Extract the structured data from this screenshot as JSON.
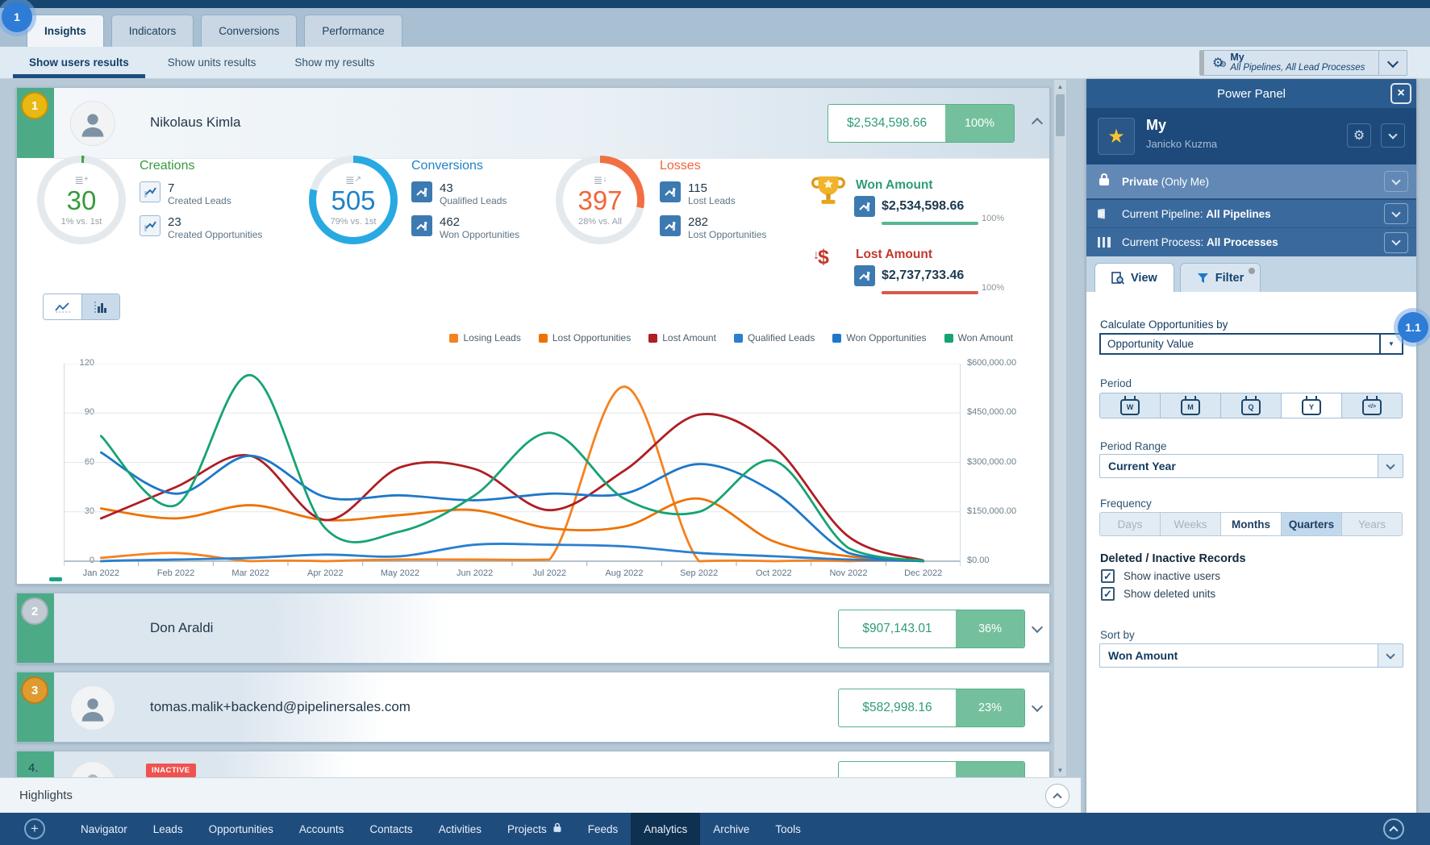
{
  "annotations": {
    "step_badge": "1",
    "sub_step_badge": "1.1"
  },
  "header": {
    "tabs": [
      {
        "label": "Insights",
        "active": true
      },
      {
        "label": "Indicators",
        "active": false
      },
      {
        "label": "Conversions",
        "active": false
      },
      {
        "label": "Performance",
        "active": false
      }
    ],
    "subtabs": [
      {
        "label": "Show users results",
        "active": true
      },
      {
        "label": "Show units results",
        "active": false
      },
      {
        "label": "Show my results",
        "active": false
      }
    ],
    "scope_selector": {
      "title": "My",
      "subtitle": "All Pipelines, All Lead Processes"
    }
  },
  "leaderboard": {
    "rows": [
      {
        "rank": "1",
        "name": "Nikolaus Kimla",
        "amount": "$2,534,598.66",
        "percent": "100%"
      },
      {
        "rank": "2",
        "name": "Don Araldi",
        "amount": "$907,143.01",
        "percent": "36%"
      },
      {
        "rank": "3",
        "name": "tomas.malik+backend@pipelinersales.com",
        "amount": "$582,998.16",
        "percent": "23%"
      },
      {
        "rank": "4.",
        "inactive_badge": "INACTIVE"
      }
    ]
  },
  "stats": {
    "creations": {
      "title": "Creations",
      "value": "30",
      "compare": "1% vs. 1st",
      "ring_percent": 1,
      "color": "#379a3d",
      "ring_color": "#43a047",
      "items": [
        {
          "value": "7",
          "label": "Created Leads"
        },
        {
          "value": "23",
          "label": "Created Opportunities"
        }
      ]
    },
    "conversions": {
      "title": "Conversions",
      "value": "505",
      "compare": "79% vs. 1st",
      "ring_percent": 79,
      "color": "#1f82c8",
      "ring_color": "#29a9e2",
      "items": [
        {
          "value": "43",
          "label": "Qualified Leads"
        },
        {
          "value": "462",
          "label": "Won Opportunities"
        }
      ]
    },
    "losses": {
      "title": "Losses",
      "value": "397",
      "compare": "28% vs. All",
      "ring_percent": 28,
      "color": "#f0653a",
      "ring_color": "#f07043",
      "items": [
        {
          "value": "115",
          "label": "Lost Leads"
        },
        {
          "value": "282",
          "label": "Lost Opportunities"
        }
      ]
    },
    "won_amount": {
      "title": "Won Amount",
      "value": "$2,534,598.66",
      "percent": "100%",
      "title_color": "#2e9c77",
      "bar_color": "#52b893"
    },
    "lost_amount": {
      "title": "Lost Amount",
      "value": "$2,737,733.46",
      "percent": "100%",
      "title_color": "#c2382c",
      "bar_color": "#d65a4f"
    }
  },
  "chart_data": {
    "type": "line",
    "title": "",
    "x_labels": [
      "Jan 2022",
      "Feb 2022",
      "Mar 2022",
      "Apr 2022",
      "May 2022",
      "Jun 2022",
      "Jul 2022",
      "Aug 2022",
      "Sep 2022",
      "Oct 2022",
      "Nov 2022",
      "Dec 2022"
    ],
    "y_left": {
      "ticks": [
        0,
        30,
        60,
        90,
        120
      ],
      "max": 120
    },
    "y_right": {
      "ticks": [
        "$0.00",
        "$150,000.00",
        "$300,000.00",
        "$450,000.00",
        "$600,000.00"
      ],
      "max": 600000
    },
    "grid": true,
    "legend_position": "top-right",
    "series": [
      {
        "name": "Losing Leads",
        "color": "#f58220",
        "axis": "left",
        "values": [
          2,
          5,
          0,
          0,
          1,
          1,
          1,
          106,
          0,
          0,
          0,
          0
        ]
      },
      {
        "name": "Lost Opportunities",
        "color": "#ee7203",
        "axis": "left",
        "values": [
          32,
          26,
          34,
          25,
          28,
          31,
          20,
          21,
          38,
          12,
          3,
          0
        ]
      },
      {
        "name": "Lost Amount",
        "color": "#ae1e24",
        "axis": "right",
        "values": [
          130000,
          225000,
          320000,
          125000,
          285000,
          280000,
          155000,
          275000,
          445000,
          350000,
          75000,
          2000
        ]
      },
      {
        "name": "Qualified Leads",
        "color": "#2a7fd0",
        "axis": "left",
        "values": [
          0,
          1,
          2,
          4,
          3,
          10,
          10,
          9,
          5,
          3,
          1,
          0
        ]
      },
      {
        "name": "Won Opportunities",
        "color": "#1d78c9",
        "axis": "left",
        "values": [
          66,
          41,
          64,
          39,
          40,
          37,
          41,
          41,
          59,
          42,
          5,
          0
        ]
      },
      {
        "name": "Won Amount",
        "color": "#16a374",
        "axis": "right",
        "values": [
          380000,
          170000,
          565000,
          100000,
          90000,
          200000,
          390000,
          190000,
          150000,
          305000,
          40000,
          1000
        ]
      }
    ]
  },
  "power_panel": {
    "title": "Power Panel",
    "profile_name": "My",
    "profile_owner": "Janicko Kuzma",
    "privacy_bold": "Private",
    "privacy_rest": " (Only Me)",
    "pipeline_prefix": "Current Pipeline: ",
    "pipeline_value": "All Pipelines",
    "process_prefix": "Current Process: ",
    "process_value": "All Processes",
    "tab_view": "View",
    "tab_filter": "Filter",
    "calc_label": "Calculate Opportunities by",
    "calc_value": "Opportunity Value",
    "period_label": "Period",
    "period_buttons": [
      {
        "letter": "W",
        "selected": false
      },
      {
        "letter": "M",
        "selected": false
      },
      {
        "letter": "Q",
        "selected": false
      },
      {
        "letter": "Y",
        "selected": true
      },
      {
        "letter": "</>",
        "selected": false
      }
    ],
    "period_range_label": "Period Range",
    "period_range_value": "Current Year",
    "frequency_label": "Frequency",
    "frequency_options": [
      {
        "label": "Days",
        "state": "disabled"
      },
      {
        "label": "Weeks",
        "state": "disabled"
      },
      {
        "label": "Months",
        "state": "active"
      },
      {
        "label": "Quarters",
        "state": "selected"
      },
      {
        "label": "Years",
        "state": "disabled"
      }
    ],
    "records_label": "Deleted / Inactive Records",
    "checkboxes": [
      {
        "label": "Show inactive users",
        "checked": true
      },
      {
        "label": "Show deleted units",
        "checked": true
      }
    ],
    "sort_label": "Sort by",
    "sort_value": "Won Amount"
  },
  "highlights": {
    "label": "Highlights"
  },
  "bottom_nav": {
    "items": [
      {
        "label": "Navigator",
        "active": false,
        "lock": false
      },
      {
        "label": "Leads",
        "active": false,
        "lock": false
      },
      {
        "label": "Opportunities",
        "active": false,
        "lock": false
      },
      {
        "label": "Accounts",
        "active": false,
        "lock": false
      },
      {
        "label": "Contacts",
        "active": false,
        "lock": false
      },
      {
        "label": "Activities",
        "active": false,
        "lock": false
      },
      {
        "label": "Projects",
        "active": false,
        "lock": true
      },
      {
        "label": "Feeds",
        "active": false,
        "lock": false
      },
      {
        "label": "Analytics",
        "active": true,
        "lock": false
      },
      {
        "label": "Archive",
        "active": false,
        "lock": false
      },
      {
        "label": "Tools",
        "active": false,
        "lock": false
      }
    ]
  }
}
